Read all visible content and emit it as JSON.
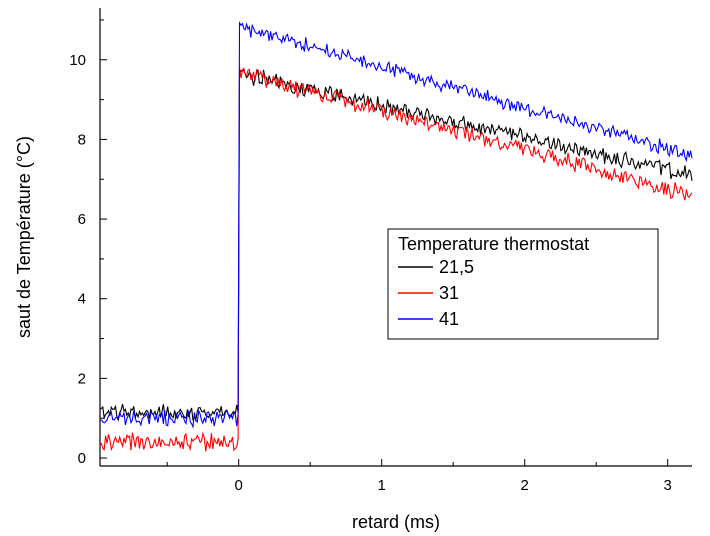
{
  "chart_data": {
    "type": "line",
    "xlabel": "retard (ms)",
    "ylabel": "saut de Température (°C)",
    "xlim": [
      -0.97,
      3.17
    ],
    "ylim": [
      -0.2,
      11.3
    ],
    "xticks": [
      0,
      1,
      2,
      3
    ],
    "xtick_labels": [
      "0",
      "1",
      "2",
      "3"
    ],
    "yticks": [
      0,
      2,
      4,
      6,
      8,
      10
    ],
    "ytick_labels": [
      "0",
      "2",
      "4",
      "6",
      "8",
      "10"
    ],
    "grid": false,
    "legend": {
      "title": "Temperature thermostat",
      "placement": "right-middle"
    },
    "step_x": 0.0,
    "series": [
      {
        "name": "21,5",
        "color": "#000000",
        "baseline": 1.15,
        "jump_to": 9.65,
        "end_value": 7.1,
        "noise": 0.16
      },
      {
        "name": "31",
        "color": "#ff0000",
        "baseline": 0.4,
        "jump_to": 9.7,
        "end_value": 6.6,
        "noise": 0.17
      },
      {
        "name": "41",
        "color": "#0000ff",
        "baseline": 1.0,
        "jump_to": 10.85,
        "end_value": 7.6,
        "noise": 0.15
      }
    ]
  }
}
